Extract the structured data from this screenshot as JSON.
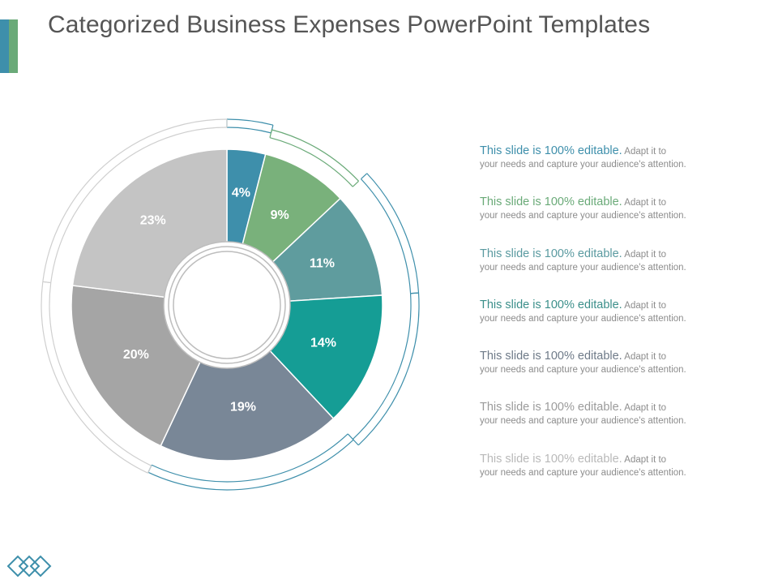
{
  "slide": {
    "title": "Categorized Business Expenses PowerPoint Templates"
  },
  "colors": {
    "accent_blue": "#3e8fab",
    "accent_green": "#6aaa78",
    "ring_blue": "#3e8fab",
    "ring_green": "#6aaa78",
    "ring_gray": "#cfcfcf"
  },
  "chart_data": {
    "type": "pie",
    "variant": "donut with segmented outer ring",
    "values": [
      4,
      9,
      11,
      14,
      19,
      20,
      23
    ],
    "labels": [
      "4%",
      "9%",
      "11%",
      "14%",
      "19%",
      "20%",
      "23%"
    ],
    "colors": [
      "#3e8fab",
      "#79b17b",
      "#5f9c9e",
      "#159d95",
      "#798797",
      "#a5a5a5",
      "#c4c4c4"
    ],
    "start": "top",
    "direction": "clockwise"
  },
  "legend": {
    "items": [
      {
        "head": "This slide is 100% editable.",
        "tail": " Adapt it to",
        "desc": "your needs and capture your audience's attention.",
        "color": "#3e8fab"
      },
      {
        "head": "This slide is 100% editable.",
        "tail": " Adapt it to",
        "desc": "your needs and capture your audience's attention.",
        "color": "#6aaa78"
      },
      {
        "head": "This slide is 100% editable.",
        "tail": " Adapt it to",
        "desc": "your needs and capture your audience's attention.",
        "color": "#5a9aa0"
      },
      {
        "head": "This slide is 100% editable.",
        "tail": " Adapt it to",
        "desc": "your needs and capture your audience's attention.",
        "color": "#3b8f8a"
      },
      {
        "head": "This slide is 100% editable.",
        "tail": " Adapt it to",
        "desc": "your needs and capture your audience's attention.",
        "color": "#6e7a88"
      },
      {
        "head": "This slide is 100% editable.",
        "tail": " Adapt it to",
        "desc": "your needs and capture your audience's attention.",
        "color": "#9b9b9b"
      },
      {
        "head": "This slide is 100% editable.",
        "tail": " Adapt it to",
        "desc": "your needs and capture your audience's attention.",
        "color": "#b9b9b9"
      }
    ]
  },
  "logo": {
    "icon": "diamond-chain-logo",
    "color": "#3e8fab"
  }
}
